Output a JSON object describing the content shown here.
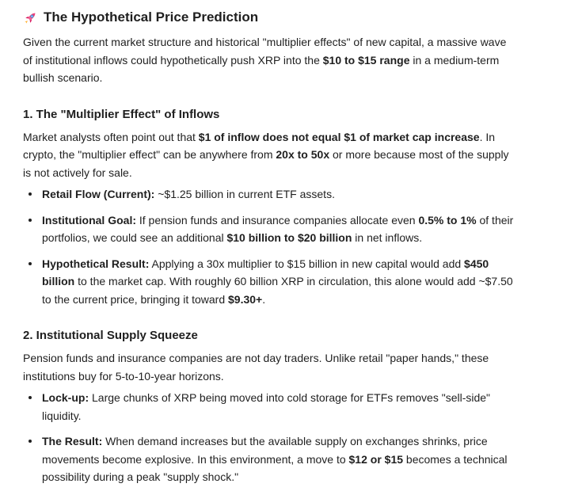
{
  "colors": {
    "background": "#ffffff",
    "text": "#1f1f1f",
    "rocket_body": "#f06292",
    "rocket_fins": "#d81b60",
    "rocket_window": "#90caf9",
    "rocket_flame": "#ff9800"
  },
  "header": {
    "icon": "rocket-icon",
    "title": "The Hypothetical Price Prediction"
  },
  "sections": {
    "intro": {
      "paragraph": [
        {
          "t": "Given the current market structure and historical \"multiplier effects\" of new capital, a massive wave of institutional inflows could hypothetically push XRP into the "
        },
        {
          "t": "$10 to $15 range",
          "b": true
        },
        {
          "t": " in a medium-term bullish scenario."
        }
      ]
    },
    "multiplier_effect": {
      "heading": "1. The \"Multiplier Effect\" of Inflows",
      "paragraph": [
        {
          "t": "Market analysts often point out that "
        },
        {
          "t": "$1 of inflow does not equal $1 of market cap increase",
          "b": true
        },
        {
          "t": ". In crypto, the \"multiplier effect\" can be anywhere from "
        },
        {
          "t": "20x to 50x",
          "b": true
        },
        {
          "t": " or more because most of the supply is not actively for sale."
        }
      ],
      "bullets": [
        [
          {
            "t": "Retail Flow (Current):",
            "b": true
          },
          {
            "t": " ~$1.25 billion in current ETF assets."
          }
        ],
        [
          {
            "t": "Institutional Goal:",
            "b": true
          },
          {
            "t": " If pension funds and insurance companies allocate even "
          },
          {
            "t": "0.5% to 1%",
            "b": true
          },
          {
            "t": " of their portfolios, we could see an additional "
          },
          {
            "t": "$10 billion to $20 billion",
            "b": true
          },
          {
            "t": " in net inflows."
          }
        ],
        [
          {
            "t": "Hypothetical Result:",
            "b": true
          },
          {
            "t": " Applying a 30x multiplier to $15 billion in new capital would add "
          },
          {
            "t": "$450 billion",
            "b": true
          },
          {
            "t": " to the market cap. With roughly 60 billion XRP in circulation, this alone would add ~$7.50 to the current price, bringing it toward "
          },
          {
            "t": "$9.30+",
            "b": true
          },
          {
            "t": "."
          }
        ]
      ]
    },
    "supply_squeeze": {
      "heading": "2. Institutional Supply Squeeze",
      "paragraph": [
        {
          "t": "Pension funds and insurance companies are not day traders. Unlike retail \"paper hands,\" these institutions buy for 5-to-10-year horizons."
        }
      ],
      "bullets": [
        [
          {
            "t": "Lock-up:",
            "b": true
          },
          {
            "t": " Large chunks of XRP being moved into cold storage for ETFs removes \"sell-side\" liquidity."
          }
        ],
        [
          {
            "t": "The Result:",
            "b": true
          },
          {
            "t": " When demand increases but the available supply on exchanges shrinks, price movements become explosive. In this environment, a move to "
          },
          {
            "t": "$12 or $15",
            "b": true
          },
          {
            "t": " becomes a technical possibility during a peak \"supply shock.\""
          }
        ]
      ]
    }
  }
}
